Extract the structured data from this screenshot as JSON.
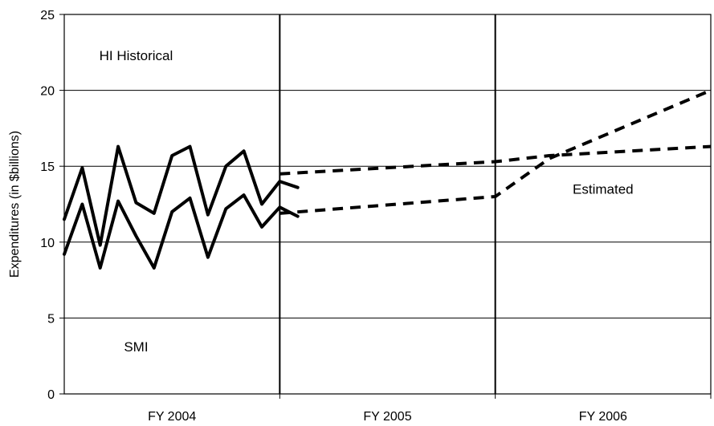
{
  "chart_data": {
    "type": "line",
    "xlabel": "",
    "ylabel": "Expenditures (in $billions)",
    "ylim": [
      0,
      25
    ],
    "yticks": [
      0,
      5,
      10,
      15,
      20,
      25
    ],
    "fiscal_years": [
      "FY 2004",
      "FY 2005",
      "FY 2006"
    ],
    "x_axis_note": "x = months from start of FY 2004 (0-36)",
    "grid": true,
    "annotations": {
      "hi_label": "HI Historical",
      "smi_label": "SMI",
      "estimated_label": "Estimated"
    },
    "series": [
      {
        "name": "",
        "style": "solid",
        "x": [
          0,
          1,
          2,
          3,
          4,
          5,
          6,
          7,
          8,
          9,
          10,
          11,
          12,
          13
        ],
        "values": [
          11.5,
          14.9,
          9.8,
          16.3,
          12.6,
          11.9,
          15.7,
          16.3,
          11.8,
          15.0,
          16.0,
          12.5,
          14.0,
          13.6
        ]
      },
      {
        "name": "",
        "style": "solid",
        "x": [
          0,
          1,
          2,
          3,
          4,
          5,
          6,
          7,
          8,
          9,
          10,
          11,
          12,
          13
        ],
        "values": [
          9.2,
          12.5,
          8.3,
          12.7,
          10.4,
          8.3,
          12.0,
          12.9,
          9.0,
          12.2,
          13.1,
          11.0,
          12.3,
          11.7
        ]
      },
      {
        "name": "",
        "style": "dashed",
        "x": [
          12,
          24,
          27,
          36
        ],
        "values": [
          14.5,
          15.3,
          15.7,
          16.3
        ]
      },
      {
        "name": "",
        "style": "dashed",
        "x": [
          12,
          24,
          27,
          36
        ],
        "values": [
          11.9,
          13.0,
          15.5,
          20.0
        ]
      }
    ]
  }
}
